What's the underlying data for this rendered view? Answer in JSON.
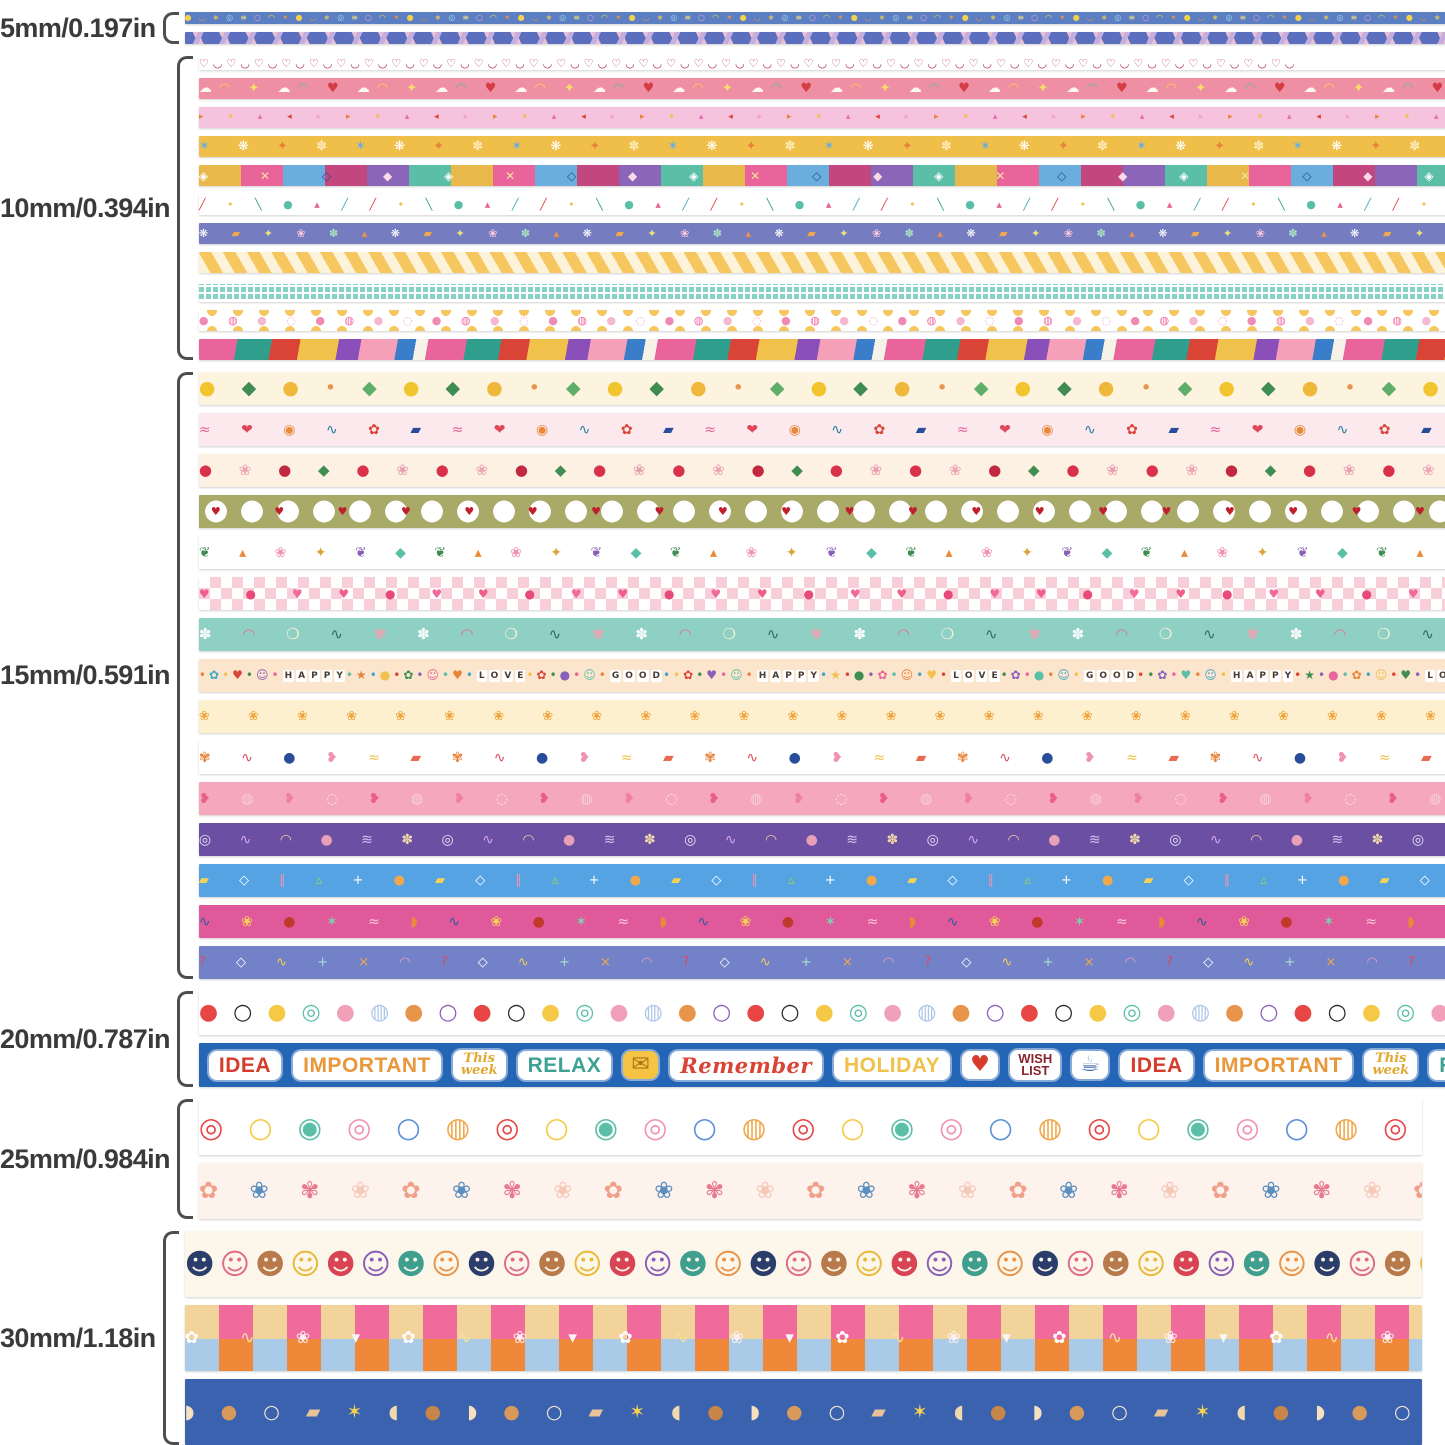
{
  "page": {
    "background": "#ffffff",
    "label_color": "#3a3a3a",
    "bracket_color": "#4e4e4e"
  },
  "groups": [
    {
      "label": "5mm/0.197in",
      "tape_height": 12,
      "tapes": [
        {
          "name": "blue-mini-doodles",
          "bg": "#5b7fc2",
          "size": 8,
          "spacing": 7,
          "glyphs": "●◡∗◎≡○◠✶",
          "colors": [
            "#f2d24b",
            "#e8944a",
            "#f2d24b",
            "#9fd8e8",
            "#f5e07a",
            "#e8a0c8",
            "#f2d24b",
            "#e8944a"
          ]
        },
        {
          "name": "blue-pink-chevron",
          "pattern": "p-chevron"
        }
      ]
    },
    {
      "label": "10mm/0.394in",
      "tape_height": 21,
      "tapes": [
        {
          "name": "red-heart-loops",
          "bg": "#ffffff",
          "height": 14,
          "size": 11,
          "spacing": 4,
          "glyphs": "♡◡",
          "colors": [
            "#b5334a"
          ]
        },
        {
          "name": "pink-rainbow-clouds",
          "bg": "#ef8fa3",
          "size": 13,
          "spacing": 7,
          "glyphs": "☁◠ ✦ ☁◠ ♥ ",
          "colors": [
            "#fdf8ee",
            "#f5d154",
            "#f7dd6a",
            "#fdf8ee",
            "#5bbfa8",
            "#d63c44"
          ]
        },
        {
          "name": "pink-confetti-triangles",
          "bg": "#f5c3de",
          "size": 9,
          "spacing": 11,
          "glyphs": "▸ ▾ ▴ ◂ ▸ ",
          "colors": [
            "#e8833a",
            "#f0c14b",
            "#e86ab4",
            "#d94436",
            "#f2a0c8"
          ]
        },
        {
          "name": "yellow-flora-stars",
          "bg": "#f0bf4a",
          "size": 13,
          "spacing": 12,
          "glyphs": "✶ ❋ ✦ ✽ ",
          "colors": [
            "#6aaede",
            "#ffffff",
            "#e8833a",
            "#fdeab8"
          ]
        },
        {
          "name": "kilim-geometric-tiles",
          "pattern": "p-geo-tiles",
          "size": 12,
          "spacing": 24,
          "glyphs": "◈ ✕ ◇ ◆ ",
          "colors": [
            "#ffffff",
            "#f5e0a0",
            "#2a4d9b",
            "#fdd8e8"
          ]
        },
        {
          "name": "white-confetti-sticks",
          "bg": "#ffffff",
          "size": 11,
          "spacing": 9,
          "glyphs": "╱ • ╲ ● ▴ ╱ ",
          "colors": [
            "#d94436",
            "#f0c14b",
            "#2f9e7d",
            "#5bbfa8",
            "#e8649b",
            "#3fa7c8"
          ]
        },
        {
          "name": "purple-plant-icons",
          "bg": "#767cc0",
          "size": 11,
          "spacing": 10,
          "glyphs": "❋ ▰ ✦ ❀ ✽ ▴ ",
          "colors": [
            "#ffffff",
            "#f0a84b",
            "#f5e07a",
            "#f5c9d8",
            "#a8e0c0",
            "#e8944a"
          ]
        },
        {
          "name": "yellow-diagonal-stripes",
          "pattern": "p-stripes"
        },
        {
          "name": "teal-grid",
          "pattern": "p-grid"
        },
        {
          "name": "pink-dots-scallop",
          "pattern": "p-dots-edge",
          "size": 11,
          "spacing": 8,
          "glyphs": "● ◍ ● ◌ ",
          "colors": [
            "#ef8ab5",
            "#f0699f",
            "#f5b8d0",
            "#f2a0c0"
          ]
        },
        {
          "name": "abstract-color-collage",
          "pattern": "p-collage"
        }
      ]
    },
    {
      "label": "15mm/0.591in",
      "tape_height": 33,
      "tapes": [
        {
          "name": "lemons-leaves",
          "bg": "#fdf4e0",
          "size": 19,
          "spacing": 10,
          "glyphs": "● ◆ ● • ◆ ",
          "colors": [
            "#f2c52e",
            "#3f8d52",
            "#f0b83a",
            "#e8944a",
            "#5fae6a"
          ]
        },
        {
          "name": "pink-abstract-shapes",
          "bg": "#fbe9ee",
          "size": 14,
          "spacing": 13,
          "glyphs": "≈ ❤ ◉ ∿ ✿ ▰ ",
          "colors": [
            "#e85f9b",
            "#e0485a",
            "#e88a3a",
            "#2a7d9b",
            "#d94436",
            "#2a4d9b"
          ]
        },
        {
          "name": "cherries-blossoms",
          "bg": "#fdf1e3",
          "size": 15,
          "spacing": 11,
          "glyphs": "● ❀ ● ◆ ● ❀ ",
          "colors": [
            "#d9314a",
            "#eda6b4",
            "#c22840",
            "#3f8d52",
            "#d9314a",
            "#e8a0b0"
          ]
        },
        {
          "name": "olive-cherry-medallions",
          "pattern": "p-medallion",
          "size": 11,
          "spacing": 25,
          "pad": 12,
          "glyphs": "♥ ",
          "colors": [
            "#c0202e"
          ]
        },
        {
          "name": "leaves-feathers",
          "bg": "#ffffff",
          "size": 14,
          "spacing": 12,
          "glyphs": "❦ ▴ ❀ ✦ ❦ ◆ ",
          "colors": [
            "#3f8d52",
            "#e88a3a",
            "#ef92b4",
            "#d9a53a",
            "#8a5fb8",
            "#5bbfa8"
          ]
        },
        {
          "name": "pink-checker-petals",
          "pattern": "p-checker",
          "size": 12,
          "spacing": 16,
          "glyphs": "♥ ● ♥ ",
          "colors": [
            "#ee5f8f",
            "#e84a7a",
            "#f06a9b"
          ]
        },
        {
          "name": "teal-abstract-plants",
          "bg": "#8fd0c4",
          "size": 15,
          "spacing": 13,
          "glyphs": "✽ ◠ ❍ ∿ ✾ ",
          "colors": [
            "#ffffff",
            "#e8708a",
            "#fdf0d8",
            "#2f6d5d",
            "#f5a0b0"
          ]
        },
        {
          "name": "happy-love-good-beads",
          "bg": "#fce5cd",
          "size": 12,
          "spacing": 3,
          "glyphs": "•✿•♥•☺•HAPPY•★•●•✿•☺•♥•LOVE•✿•●•☺•GOOD•",
          "colors": [
            "#e8833a",
            "#3fa7c8",
            "#f0c14b",
            "#d94436",
            "#3f8d52",
            "#8a5fb8",
            "#e8649b",
            "#5bbfa8"
          ]
        },
        {
          "name": "orange-flower-rows",
          "bg": "#fdf0cf",
          "size": 13,
          "spacing": 17,
          "wrap": true,
          "lh": 16,
          "glyphs": "❀ ",
          "colors": [
            "#f0a33a"
          ]
        },
        {
          "name": "white-abstract-doodles",
          "bg": "#ffffff",
          "size": 14,
          "spacing": 13,
          "glyphs": "✾ ∿ ● ❥ ≈ ▰ ",
          "colors": [
            "#e8833a",
            "#e0485a",
            "#2a4d9b",
            "#ef92b4",
            "#f0c14b",
            "#e86a50"
          ]
        },
        {
          "name": "pink-strawberries",
          "bg": "#f4a7bd",
          "size": 14,
          "spacing": 13,
          "glyphs": "❥ ◍ ❥ ◌ ",
          "colors": [
            "#e85f88",
            "#f7d0dd",
            "#ef7fa5",
            "#fbe3ec"
          ]
        },
        {
          "name": "purple-doodles",
          "bg": "#6a4fa3",
          "size": 14,
          "spacing": 12,
          "glyphs": "◎ ∿ ◠ ● ≋ ✽ ",
          "colors": [
            "#e9e3f5",
            "#d8a7e8",
            "#f5c9a8",
            "#e8a0b8",
            "#cfc3ee",
            "#f0d8a8"
          ]
        },
        {
          "name": "blue-geometric-memphis",
          "bg": "#56a3e3",
          "size": 13,
          "spacing": 13,
          "glyphs": "▰ ◇ ∥ ▵ + ● ",
          "colors": [
            "#f5d154",
            "#ffffff",
            "#ef92b4",
            "#9bd05a",
            "#ffffff",
            "#f0a84b"
          ]
        },
        {
          "name": "magenta-abstract-doodles",
          "bg": "#e05a9b",
          "size": 14,
          "spacing": 13,
          "glyphs": "∿ ❀ ● ✶ ≈ ◗ ",
          "colors": [
            "#2a5d9b",
            "#f5d154",
            "#c0392b",
            "#7fd0b0",
            "#f8c8d8",
            "#e88a3a"
          ]
        },
        {
          "name": "periwinkle-confetti-marks",
          "bg": "#7381c8",
          "size": 13,
          "spacing": 13,
          "glyphs": "? ◇ ∿ + × ◠ ",
          "colors": [
            "#e0485a",
            "#ffffff",
            "#f5d154",
            "#a8e0d0",
            "#f0a84b",
            "#e8a0b8"
          ]
        }
      ]
    },
    {
      "label": "20mm/0.787in",
      "tape_height": 44,
      "tapes": [
        {
          "name": "dot-blob-collage",
          "bg": "#ffffff",
          "size": 22,
          "spacing": 4,
          "wrap": true,
          "lh": 22,
          "glyphs": "● ○ ● ◎ ● ◍ ● ○ ",
          "colors": [
            "#e84545",
            "#2b2b2b",
            "#f5c945",
            "#5bbfa8",
            "#f0a0b8",
            "#aec6e8",
            "#e8944a",
            "#8a5fb8"
          ]
        },
        {
          "name": "blue-word-stickers",
          "bg": "#2565b5",
          "repeat": 2,
          "words": [
            {
              "text": "IDEA",
              "color": "#d63c2e"
            },
            {
              "text": "IMPORTANT",
              "color": "#e8973a"
            },
            {
              "text": "This\nweek",
              "color": "#e0a82e",
              "script": true,
              "small": true
            },
            {
              "text": "RELAX",
              "color": "#3fa193"
            },
            {
              "text": "✉",
              "color": "#a87718",
              "bg": "#f5c445",
              "icon": true
            },
            {
              "text": "Remember",
              "color": "#d94436",
              "script": true
            },
            {
              "text": "HOLIDAY",
              "color": "#f0c14b"
            },
            {
              "text": "♥",
              "color": "#d63c2e",
              "icon": true
            },
            {
              "text": "WISH\nLIST",
              "color": "#8a2430",
              "small": true
            },
            {
              "text": "☕",
              "color": "#4a6fb8",
              "icon": true
            }
          ]
        }
      ]
    },
    {
      "label": "25mm/0.984in",
      "tape_height": 56,
      "tapes": [
        {
          "name": "concentric-circle-doodles",
          "bg": "#ffffff",
          "size": 28,
          "spacing": 8,
          "wrap": true,
          "lh": 27,
          "glyphs": "◎ ○ ◉ ◎ ○ ◍ ",
          "colors": [
            "#e84545",
            "#f5c945",
            "#5bbfa8",
            "#ef92b4",
            "#5a8fd8",
            "#f0a84b"
          ]
        },
        {
          "name": "cream-watercolor-flowers",
          "bg": "#fdf2ec",
          "size": 23,
          "spacing": 12,
          "wrap": true,
          "lh": 27,
          "glyphs": "✿ ❀ ✾ ❀ ",
          "colors": [
            "#f0a08a",
            "#5a8fc0",
            "#e87a90",
            "#f5c9b8"
          ]
        }
      ]
    },
    {
      "label": "30mm/1.18in",
      "tape_height": 66,
      "tapes": [
        {
          "name": "colorful-faces",
          "bg": "#fdf6ea",
          "size": 29,
          "spacing": 5,
          "wrap": true,
          "lh": 31,
          "glyphs": "☻☺☻☺☻☺☻☺",
          "colors": [
            "#2a3d6b",
            "#e06a8a",
            "#b87a4a",
            "#e8b93a",
            "#d94455",
            "#8a5fb8",
            "#3f9e8d",
            "#e8944a"
          ]
        },
        {
          "name": "flower-patch-tiles",
          "pattern": "p-tiles",
          "size": 17,
          "spacing": 18,
          "wrap": true,
          "lh": 33,
          "glyphs": "✿ ∿ ❀ ▾ ",
          "colors": [
            "#ffffff",
            "#f5e0a0",
            "#fdeef5",
            "#f7f7f7"
          ]
        },
        {
          "name": "blue-bakery-bread",
          "bg": "#3a62ae",
          "size": 19,
          "spacing": 10,
          "wrap": true,
          "lh": 22,
          "glyphs": "◗ ● ○ ▰ ✶ ◖ ● ",
          "colors": [
            "#f5e0c0",
            "#d89a5a",
            "#f5ead8",
            "#e8c39a",
            "#f5d154",
            "#f0d8b0",
            "#c8854a"
          ]
        }
      ]
    }
  ]
}
